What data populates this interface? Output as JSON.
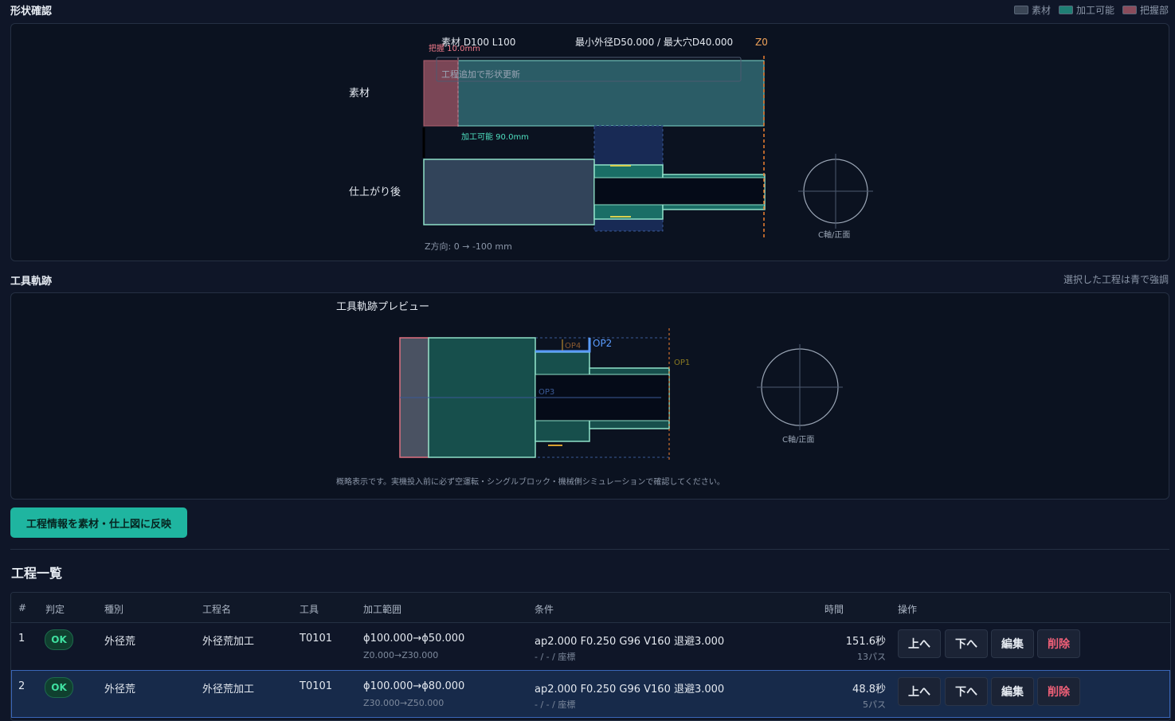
{
  "shape": {
    "title": "形状確認",
    "legend": [
      {
        "label": "素材",
        "color": "#3b4656"
      },
      {
        "label": "加工可能",
        "color": "#1f7f74"
      },
      {
        "label": "把握部",
        "color": "#8a4c5c"
      }
    ],
    "stock_spec": "素材 D100 L100",
    "minmax": "最小外径D50.000 / 最大穴D40.000",
    "z0": "Z0",
    "grip_label": "把握 10.0mm",
    "update_hint": "工程追加で形状更新",
    "machinable_label": "加工可能 90.0mm",
    "row_stock": "素材",
    "row_finished": "仕上がり後",
    "z_direction": "Z方向: 0 → -100 mm",
    "c_axis": "C軸/正面"
  },
  "toolpath": {
    "title": "工具軌跡",
    "hint": "選択した工程は青で強調",
    "preview_title": "工具軌跡プレビュー",
    "ops": [
      "OP1",
      "OP2",
      "OP3",
      "OP4"
    ],
    "c_axis": "C軸/正面",
    "note": "概略表示です。実機投入前に必ず空運転・シングルブロック・機械側シミュレーションで確認してください。"
  },
  "reflect_button": "工程情報を素材・仕上図に反映",
  "process_list": {
    "title": "工程一覧",
    "columns": [
      "#",
      "判定",
      "種別",
      "工程名",
      "工具",
      "加工範囲",
      "条件",
      "時間",
      "操作"
    ],
    "rows": [
      {
        "no": "1",
        "status": "OK",
        "type": "外径荒",
        "name": "外径荒加工",
        "tool": "T0101",
        "range": "ϕ100.000→ϕ50.000",
        "range_z": "Z0.000→Z30.000",
        "cond": "ap2.000 F0.250 G96 V160 退避3.000",
        "cond_sub": "- / - / 座標",
        "time": "151.6秒",
        "passes": "13パス"
      },
      {
        "no": "2",
        "status": "OK",
        "type": "外径荒",
        "name": "外径荒加工",
        "tool": "T0101",
        "range": "ϕ100.000→ϕ80.000",
        "range_z": "Z30.000→Z50.000",
        "cond": "ap2.000 F0.250 G96 V160 退避3.000",
        "cond_sub": "- / - / 座標",
        "time": "48.8秒",
        "passes": "5パス"
      }
    ],
    "actions": {
      "up": "上へ",
      "down": "下へ",
      "edit": "編集",
      "delete": "削除"
    }
  }
}
